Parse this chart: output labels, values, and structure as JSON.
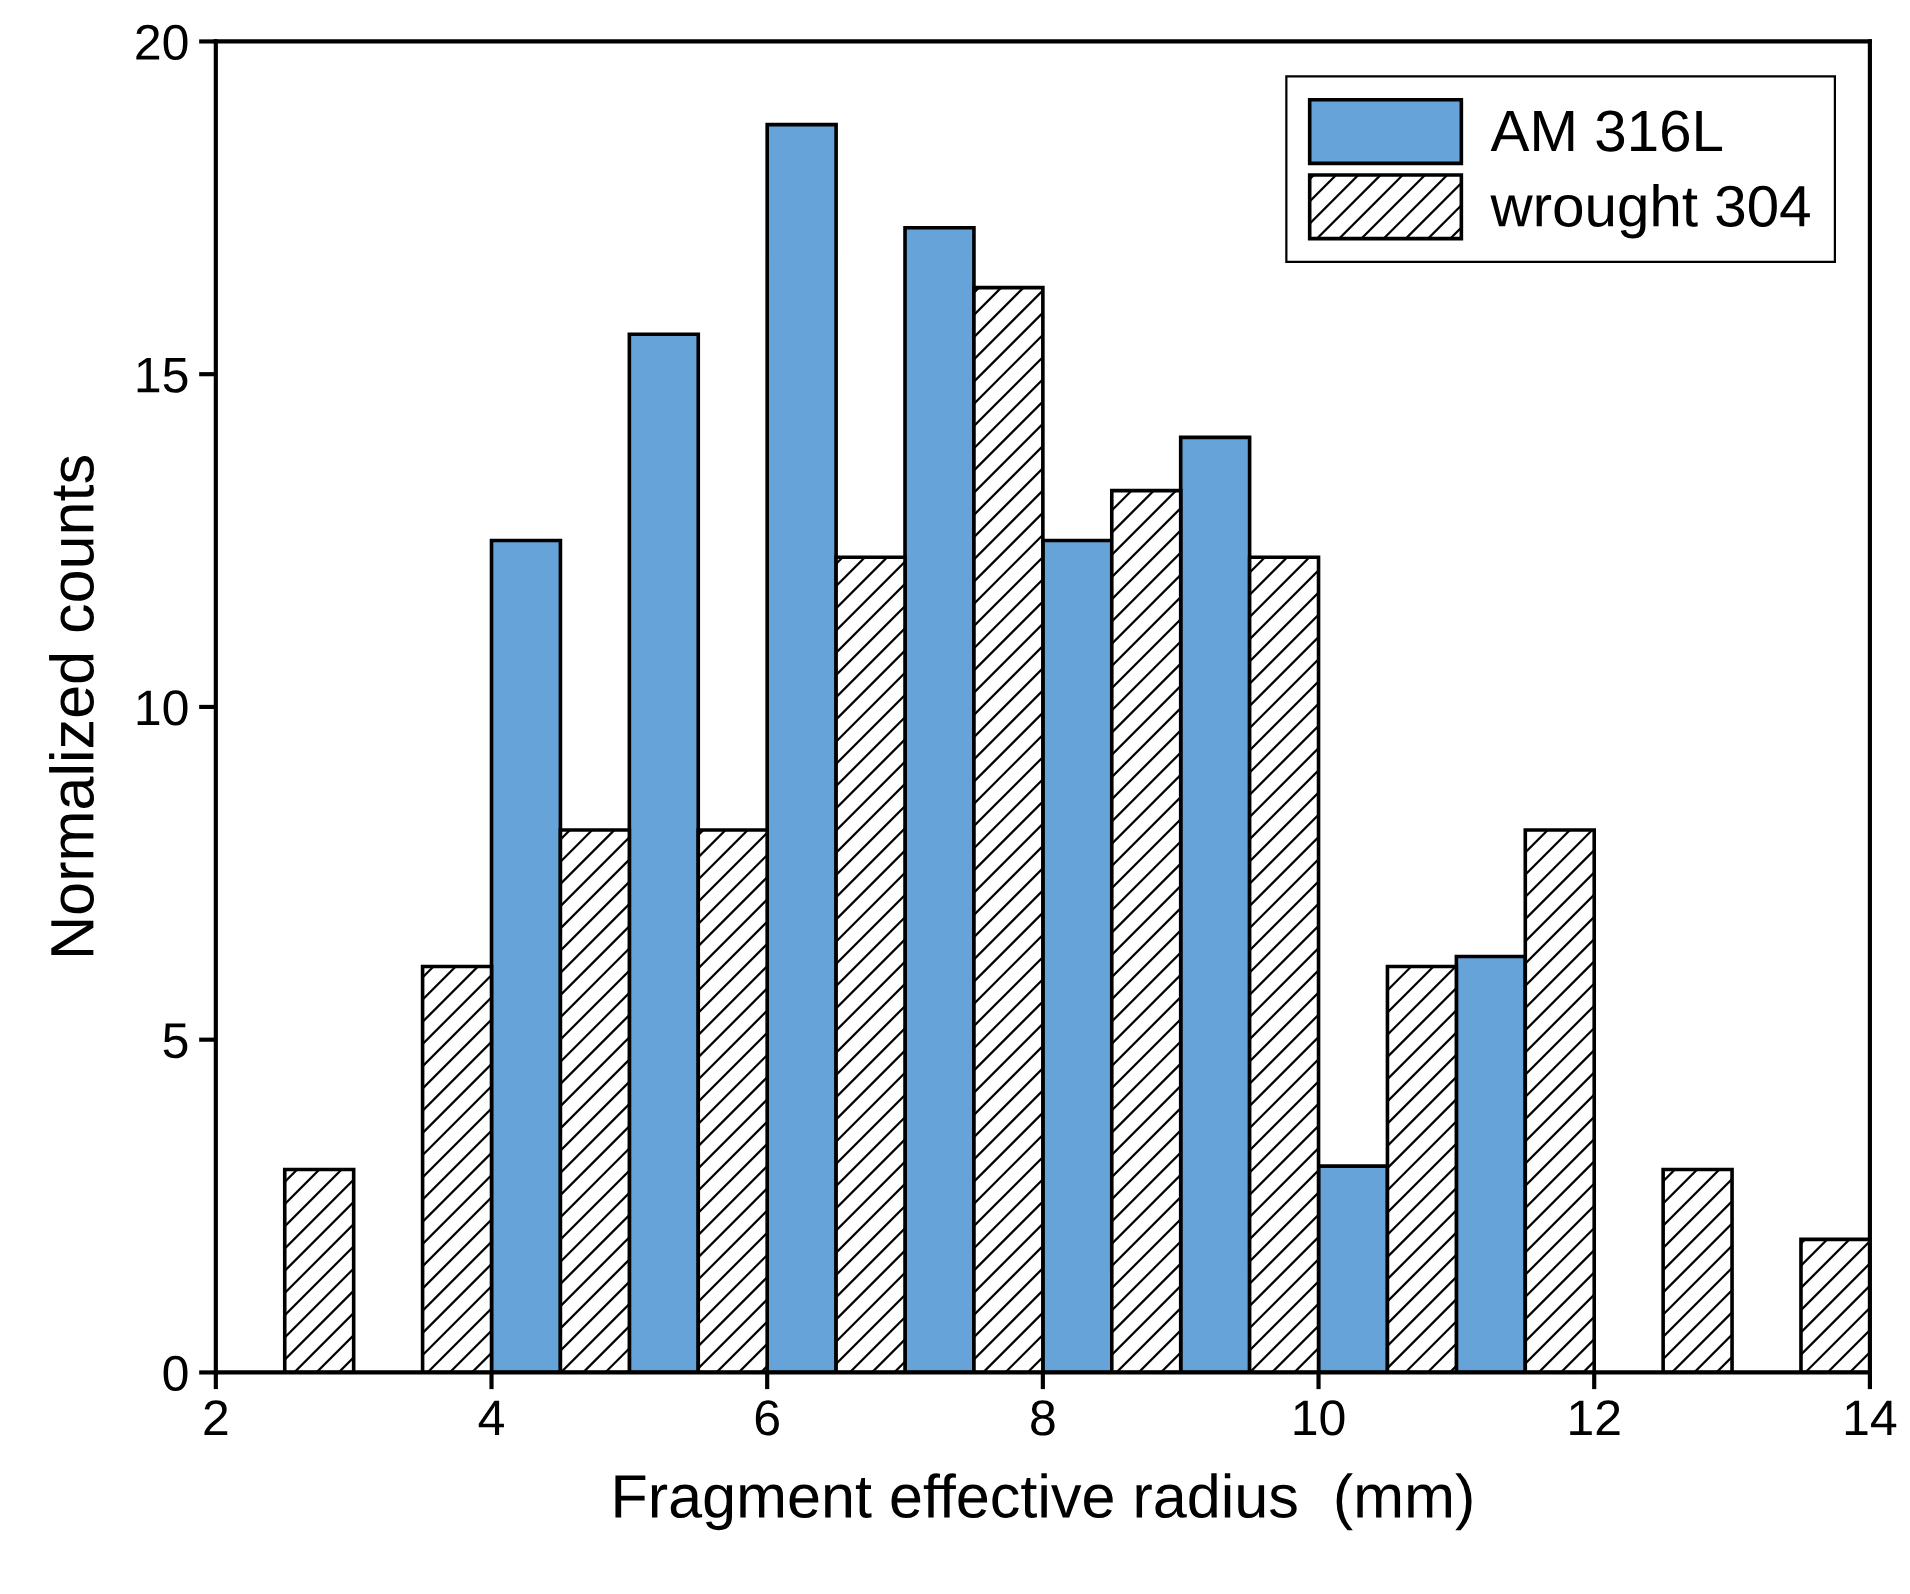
{
  "chart_data": {
    "type": "bar",
    "xlabel": "Fragment effective radius  (mm)",
    "ylabel": "Normalized counts",
    "series": [
      {
        "name": "AM 316L",
        "color": "#66a3d9",
        "x": [
          4.25,
          5.25,
          6.25,
          7.25,
          8.25,
          9.25,
          10.25,
          11.25
        ],
        "values": [
          12.5,
          15.6,
          18.75,
          17.2,
          12.5,
          14.05,
          3.1,
          6.25
        ]
      },
      {
        "name": "wrought 304",
        "color": "#000000",
        "x": [
          2.75,
          3.75,
          4.75,
          5.75,
          6.75,
          7.75,
          8.75,
          9.75,
          10.75,
          11.75,
          12.75,
          13.75
        ],
        "values": [
          3.05,
          6.1,
          8.15,
          8.15,
          12.25,
          16.3,
          13.25,
          12.25,
          6.1,
          8.15,
          3.05,
          2.0
        ]
      }
    ],
    "xlim": [
      2,
      14
    ],
    "xticks": [
      2,
      4,
      6,
      8,
      10,
      12,
      14
    ],
    "ylim": [
      0,
      20
    ],
    "yticks": [
      0,
      5,
      10,
      15,
      20
    ],
    "grid": false,
    "legend": "top right"
  }
}
